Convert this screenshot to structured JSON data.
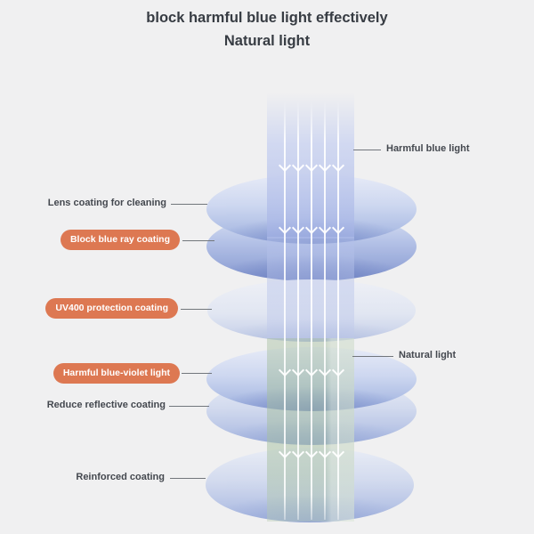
{
  "title": {
    "line1": "block harmful blue light effectively",
    "line2": "Natural light"
  },
  "callouts": {
    "lens_cleaning": "Lens coating for cleaning",
    "block_blue_ray": "Block blue ray coating",
    "uv400": "UV400 protection coating",
    "blue_violet": "Harmful blue-violet light",
    "reduce_reflective": "Reduce reflective coating",
    "reinforced": "Reinforced coating",
    "harmful_blue_light": "Harmful blue light",
    "natural_light": "Natural light"
  },
  "diagram": {
    "lens_layers_top_to_bottom": [
      "Lens coating for cleaning",
      "Block blue ray coating",
      "UV400 protection coating",
      "Reduce reflective coating (pair with harmful blue-violet light filtering)",
      "Reinforced coating"
    ],
    "beam_top": "harmful blue light entering",
    "beam_bottom": "natural light passing through",
    "arrow_icon": "down-arrow-icon",
    "arrow_count_per_row": 5
  },
  "colors": {
    "background": "#f0f0f1",
    "accent_pill": "#dd7852",
    "label_text": "#44484f",
    "title_text": "#373c43",
    "lens_blue": "#9db0de",
    "beam_blue": "#b9c6ec",
    "beam_green": "#b4c8ae",
    "connector": "#72767c"
  }
}
